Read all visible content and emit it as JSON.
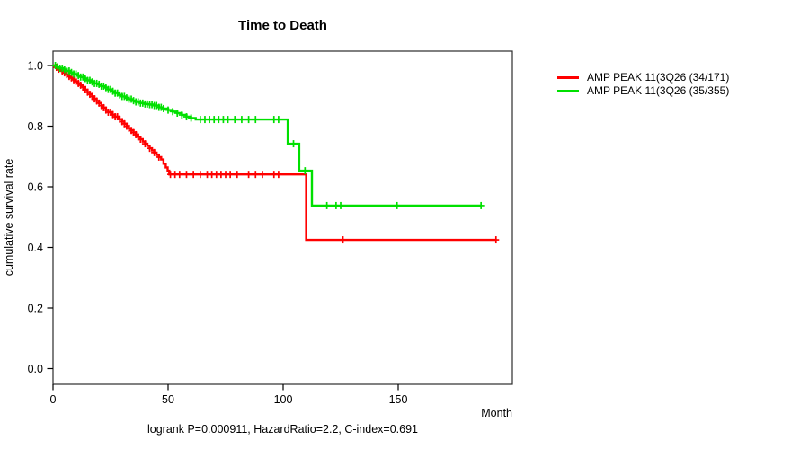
{
  "figure": {
    "title": "Time to Death",
    "x_axis_label": "Month",
    "y_axis_label": "cumulative survival rate",
    "footer": "logrank P=0.000911, HazardRatio=2.2, C-index=0.691"
  },
  "legend": {
    "items": [
      {
        "label": "AMP PEAK 11(3Q26 (34/171)",
        "color": "#ff0000"
      },
      {
        "label": "AMP PEAK 11(3Q26 (35/355)",
        "color": "#00e000"
      }
    ]
  },
  "chart_data": {
    "type": "line",
    "subtype": "kaplan-meier-step",
    "title": "Time to Death",
    "xlabel": "Month",
    "ylabel": "cumulative survival rate",
    "annotation": "logrank P=0.000911, HazardRatio=2.2, C-index=0.691",
    "xlim": [
      0,
      200
    ],
    "ylim": [
      0,
      1.0
    ],
    "grid": false,
    "legend_position": "right-outside",
    "xticks": [
      {
        "value": 0,
        "label": "0"
      },
      {
        "value": 50,
        "label": "50"
      },
      {
        "value": 100,
        "label": "100"
      },
      {
        "value": 150,
        "label": "150"
      }
    ],
    "yticks": [
      {
        "value": 1.0,
        "label": "1.0"
      },
      {
        "value": 0.8,
        "label": "0.8"
      },
      {
        "value": 0.6,
        "label": "0.6"
      },
      {
        "value": 0.4,
        "label": "0.4"
      },
      {
        "value": 0.2,
        "label": "0.2"
      },
      {
        "value": 0.0,
        "label": "0.0"
      }
    ],
    "series": [
      {
        "key": "red",
        "name": "AMP PEAK 11(3Q26 (34/171)",
        "color": "#ff0000",
        "end_month": 192.5,
        "steps": [
          [
            0,
            1.0
          ],
          [
            1.2,
            0.994
          ],
          [
            2.5,
            0.988
          ],
          [
            3.7,
            0.982
          ],
          [
            5,
            0.976
          ],
          [
            6,
            0.97
          ],
          [
            7,
            0.964
          ],
          [
            8,
            0.959
          ],
          [
            9,
            0.953
          ],
          [
            10,
            0.947
          ],
          [
            11,
            0.941
          ],
          [
            12,
            0.935
          ],
          [
            13,
            0.929
          ],
          [
            14,
            0.92
          ],
          [
            15,
            0.912
          ],
          [
            16,
            0.905
          ],
          [
            17,
            0.898
          ],
          [
            18,
            0.89
          ],
          [
            19,
            0.883
          ],
          [
            20,
            0.876
          ],
          [
            21,
            0.868
          ],
          [
            22,
            0.861
          ],
          [
            23,
            0.853
          ],
          [
            24,
            0.846
          ],
          [
            25.5,
            0.838
          ],
          [
            27,
            0.831
          ],
          [
            28.5,
            0.823
          ],
          [
            30,
            0.815
          ],
          [
            31,
            0.808
          ],
          [
            32,
            0.8
          ],
          [
            33,
            0.793
          ],
          [
            34,
            0.786
          ],
          [
            35,
            0.779
          ],
          [
            36,
            0.772
          ],
          [
            37,
            0.764
          ],
          [
            38,
            0.757
          ],
          [
            39,
            0.749
          ],
          [
            40,
            0.742
          ],
          [
            41,
            0.735
          ],
          [
            42,
            0.727
          ],
          [
            43,
            0.72
          ],
          [
            44,
            0.713
          ],
          [
            45,
            0.705
          ],
          [
            46,
            0.698
          ],
          [
            47,
            0.69
          ],
          [
            48,
            0.676
          ],
          [
            49,
            0.664
          ],
          [
            49.8,
            0.653
          ],
          [
            50.5,
            0.641
          ],
          [
            110,
            0.425
          ]
        ],
        "censor_months": [
          1.5,
          2.5,
          4,
          5,
          6,
          7,
          8,
          9,
          10,
          11,
          12,
          13,
          14,
          15,
          16,
          17,
          18,
          19,
          20,
          21,
          22,
          23,
          24,
          25,
          26,
          27,
          28,
          29,
          30,
          31,
          32,
          33,
          34,
          35,
          36,
          37,
          38,
          40,
          42,
          44,
          46,
          51,
          53,
          55,
          58,
          61,
          64,
          67,
          69,
          71,
          73,
          75,
          77,
          80,
          85,
          88,
          91,
          96,
          98,
          126,
          192.5
        ]
      },
      {
        "key": "green",
        "name": "AMP PEAK 11(3Q26 (35/355)",
        "color": "#00e000",
        "end_month": 186,
        "steps": [
          [
            0,
            1.0
          ],
          [
            1.5,
            0.996
          ],
          [
            3,
            0.991
          ],
          [
            4.5,
            0.987
          ],
          [
            6,
            0.982
          ],
          [
            7.5,
            0.977
          ],
          [
            9,
            0.972
          ],
          [
            10.5,
            0.967
          ],
          [
            12,
            0.962
          ],
          [
            13.5,
            0.957
          ],
          [
            15,
            0.951
          ],
          [
            16.5,
            0.946
          ],
          [
            18,
            0.941
          ],
          [
            19.5,
            0.938
          ],
          [
            21,
            0.932
          ],
          [
            22.5,
            0.927
          ],
          [
            24,
            0.921
          ],
          [
            25.5,
            0.915
          ],
          [
            27,
            0.909
          ],
          [
            28.5,
            0.903
          ],
          [
            30,
            0.898
          ],
          [
            31.5,
            0.893
          ],
          [
            33,
            0.889
          ],
          [
            34.5,
            0.884
          ],
          [
            36,
            0.88
          ],
          [
            38,
            0.876
          ],
          [
            40,
            0.873
          ],
          [
            42,
            0.871
          ],
          [
            44,
            0.868
          ],
          [
            46,
            0.862
          ],
          [
            48,
            0.858
          ],
          [
            50,
            0.853
          ],
          [
            52,
            0.848
          ],
          [
            54,
            0.843
          ],
          [
            56,
            0.837
          ],
          [
            58,
            0.831
          ],
          [
            60,
            0.827
          ],
          [
            62,
            0.822
          ],
          [
            102,
            0.742
          ],
          [
            107,
            0.653
          ],
          [
            112.5,
            0.538
          ]
        ],
        "censor_months": [
          1,
          2,
          3,
          4,
          5,
          6,
          7,
          8,
          9,
          10,
          11,
          12,
          13,
          14,
          15,
          16,
          17,
          18,
          19,
          20,
          21,
          22,
          23,
          24,
          25,
          26,
          27,
          28,
          29,
          30,
          31,
          32,
          33,
          34,
          35,
          36,
          37,
          38,
          39,
          40,
          41,
          42,
          43,
          44,
          45,
          46,
          47,
          48,
          50,
          52,
          54,
          56,
          58,
          60,
          64,
          66,
          68,
          70,
          72,
          74,
          76,
          79,
          82,
          85,
          88,
          96,
          98,
          104.5,
          109.5,
          119,
          123,
          125,
          149.5,
          186
        ]
      }
    ]
  }
}
